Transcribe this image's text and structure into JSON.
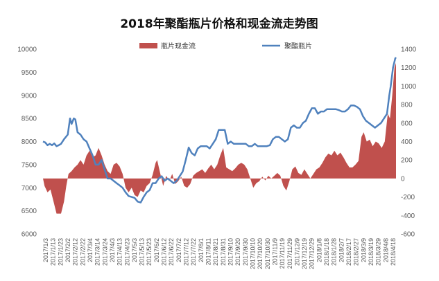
{
  "chart_data": {
    "type": "line+area",
    "title": "2018年聚酯瓶片价格和现金流走势图",
    "legend": [
      {
        "name": "瓶片现金流",
        "color": "#c0504d",
        "kind": "area"
      },
      {
        "name": "聚酯瓶片",
        "color": "#4f81bd",
        "kind": "line"
      }
    ],
    "legend_position": "top",
    "grid": false,
    "y_left": {
      "min": 6000,
      "max": 10000,
      "ticks": [
        "6000",
        "6500",
        "7000",
        "7500",
        "8000",
        "8500",
        "9000",
        "9500",
        "10000"
      ]
    },
    "y_right": {
      "min": -600,
      "max": 1400,
      "ticks": [
        "-600",
        "-400",
        "-200",
        "0",
        "200",
        "400",
        "600",
        "800",
        "1000",
        "1200",
        "1400"
      ]
    },
    "x_range": [
      "2017-01-03",
      "2018-04-18"
    ],
    "x_ticks": [
      "2017/1/3",
      "2017/1/13",
      "2017/1/23",
      "2017/2/2",
      "2017/2/12",
      "2017/2/22",
      "2017/3/4",
      "2017/3/14",
      "2017/3/24",
      "2017/4/3",
      "2017/4/13",
      "2017/4/23",
      "2017/5/3",
      "2017/5/13",
      "2017/5/23",
      "2017/6/2",
      "2017/6/12",
      "2017/6/22",
      "2017/7/2",
      "2017/7/12",
      "2017/7/22",
      "2017/8/1",
      "2017/8/11",
      "2017/8/21",
      "2017/8/31",
      "2017/9/10",
      "2017/9/20",
      "2017/9/30",
      "2017/10/10",
      "2017/10/20",
      "2017/10/30",
      "2017/11/9",
      "2017/11/19",
      "2017/11/29",
      "2017/12/9",
      "2017/12/19",
      "2017/12/29",
      "2018/1/8",
      "2018/1/18",
      "2018/1/28",
      "2018/2/7",
      "2018/2/17",
      "2018/2/27",
      "2018/3/9",
      "2018/3/19",
      "2018/3/29",
      "2018/4/8",
      "2018/4/18"
    ],
    "series": [
      {
        "name": "聚酯瓶片",
        "axis": "left",
        "points": [
          [
            "2017-01-03",
            8000
          ],
          [
            "2017-01-06",
            7980
          ],
          [
            "2017-01-09",
            7920
          ],
          [
            "2017-01-12",
            7950
          ],
          [
            "2017-01-15",
            7920
          ],
          [
            "2017-01-18",
            7960
          ],
          [
            "2017-01-21",
            7900
          ],
          [
            "2017-01-24",
            7920
          ],
          [
            "2017-01-27",
            7950
          ],
          [
            "2017-01-31",
            8050
          ],
          [
            "2017-02-05",
            8150
          ],
          [
            "2017-02-08",
            8500
          ],
          [
            "2017-02-10",
            8380
          ],
          [
            "2017-02-13",
            8500
          ],
          [
            "2017-02-15",
            8480
          ],
          [
            "2017-02-18",
            8200
          ],
          [
            "2017-02-22",
            8150
          ],
          [
            "2017-02-26",
            8050
          ],
          [
            "2017-03-02",
            8000
          ],
          [
            "2017-03-06",
            7850
          ],
          [
            "2017-03-10",
            7700
          ],
          [
            "2017-03-14",
            7500
          ],
          [
            "2017-03-18",
            7500
          ],
          [
            "2017-03-22",
            7600
          ],
          [
            "2017-03-26",
            7400
          ],
          [
            "2017-03-30",
            7200
          ],
          [
            "2017-04-03",
            7200
          ],
          [
            "2017-04-07",
            7150
          ],
          [
            "2017-04-11",
            7100
          ],
          [
            "2017-04-15",
            7050
          ],
          [
            "2017-04-19",
            7000
          ],
          [
            "2017-04-23",
            6900
          ],
          [
            "2017-04-27",
            6820
          ],
          [
            "2017-05-01",
            6800
          ],
          [
            "2017-05-05",
            6780
          ],
          [
            "2017-05-09",
            6700
          ],
          [
            "2017-05-13",
            6680
          ],
          [
            "2017-05-17",
            6800
          ],
          [
            "2017-05-21",
            6900
          ],
          [
            "2017-05-25",
            6950
          ],
          [
            "2017-05-29",
            7100
          ],
          [
            "2017-06-02",
            7100
          ],
          [
            "2017-06-06",
            7200
          ],
          [
            "2017-06-10",
            7250
          ],
          [
            "2017-06-14",
            7150
          ],
          [
            "2017-06-18",
            7200
          ],
          [
            "2017-06-22",
            7150
          ],
          [
            "2017-06-26",
            7100
          ],
          [
            "2017-06-30",
            7150
          ],
          [
            "2017-07-04",
            7250
          ],
          [
            "2017-07-08",
            7350
          ],
          [
            "2017-07-12",
            7600
          ],
          [
            "2017-07-16",
            7870
          ],
          [
            "2017-07-20",
            7750
          ],
          [
            "2017-07-24",
            7700
          ],
          [
            "2017-07-28",
            7850
          ],
          [
            "2017-08-01",
            7900
          ],
          [
            "2017-08-05",
            7900
          ],
          [
            "2017-08-09",
            7900
          ],
          [
            "2017-08-13",
            7850
          ],
          [
            "2017-08-17",
            7950
          ],
          [
            "2017-08-21",
            8050
          ],
          [
            "2017-08-25",
            8250
          ],
          [
            "2017-08-29",
            8250
          ],
          [
            "2017-09-02",
            8250
          ],
          [
            "2017-09-06",
            7950
          ],
          [
            "2017-09-10",
            8000
          ],
          [
            "2017-09-14",
            7950
          ],
          [
            "2017-09-18",
            7950
          ],
          [
            "2017-09-22",
            7950
          ],
          [
            "2017-09-26",
            7950
          ],
          [
            "2017-09-30",
            7950
          ],
          [
            "2017-10-04",
            7900
          ],
          [
            "2017-10-08",
            7900
          ],
          [
            "2017-10-12",
            7950
          ],
          [
            "2017-10-16",
            7900
          ],
          [
            "2017-10-20",
            7900
          ],
          [
            "2017-10-24",
            7900
          ],
          [
            "2017-10-28",
            7900
          ],
          [
            "2017-11-01",
            7920
          ],
          [
            "2017-11-05",
            8050
          ],
          [
            "2017-11-09",
            8100
          ],
          [
            "2017-11-13",
            8100
          ],
          [
            "2017-11-17",
            8050
          ],
          [
            "2017-11-21",
            8000
          ],
          [
            "2017-11-25",
            8050
          ],
          [
            "2017-11-29",
            8300
          ],
          [
            "2017-12-03",
            8350
          ],
          [
            "2017-12-07",
            8300
          ],
          [
            "2017-12-11",
            8300
          ],
          [
            "2017-12-15",
            8400
          ],
          [
            "2017-12-19",
            8450
          ],
          [
            "2017-12-23",
            8600
          ],
          [
            "2017-12-27",
            8720
          ],
          [
            "2017-12-31",
            8720
          ],
          [
            "2018-01-04",
            8600
          ],
          [
            "2018-01-08",
            8650
          ],
          [
            "2018-01-12",
            8650
          ],
          [
            "2018-01-16",
            8700
          ],
          [
            "2018-01-20",
            8700
          ],
          [
            "2018-01-24",
            8700
          ],
          [
            "2018-01-28",
            8700
          ],
          [
            "2018-02-01",
            8680
          ],
          [
            "2018-02-05",
            8650
          ],
          [
            "2018-02-09",
            8650
          ],
          [
            "2018-02-13",
            8700
          ],
          [
            "2018-02-17",
            8780
          ],
          [
            "2018-02-21",
            8780
          ],
          [
            "2018-02-25",
            8750
          ],
          [
            "2018-03-01",
            8700
          ],
          [
            "2018-03-05",
            8550
          ],
          [
            "2018-03-09",
            8450
          ],
          [
            "2018-03-13",
            8400
          ],
          [
            "2018-03-17",
            8350
          ],
          [
            "2018-03-21",
            8300
          ],
          [
            "2018-03-25",
            8350
          ],
          [
            "2018-03-29",
            8400
          ],
          [
            "2018-04-02",
            8500
          ],
          [
            "2018-04-06",
            8600
          ],
          [
            "2018-04-09",
            9000
          ],
          [
            "2018-04-11",
            9200
          ],
          [
            "2018-04-14",
            9600
          ],
          [
            "2018-04-17",
            9800
          ],
          [
            "2018-04-18",
            9820
          ]
        ]
      },
      {
        "name": "瓶片现金流",
        "axis": "right",
        "points": [
          [
            "2017-01-03",
            0
          ],
          [
            "2017-01-05",
            -80
          ],
          [
            "2017-01-09",
            -150
          ],
          [
            "2017-01-13",
            -120
          ],
          [
            "2017-01-17",
            -250
          ],
          [
            "2017-01-21",
            -380
          ],
          [
            "2017-01-27",
            -380
          ],
          [
            "2017-01-31",
            -250
          ],
          [
            "2017-02-03",
            -80
          ],
          [
            "2017-02-06",
            50
          ],
          [
            "2017-02-10",
            80
          ],
          [
            "2017-02-14",
            120
          ],
          [
            "2017-02-18",
            150
          ],
          [
            "2017-02-22",
            200
          ],
          [
            "2017-02-26",
            150
          ],
          [
            "2017-03-02",
            250
          ],
          [
            "2017-03-06",
            300
          ],
          [
            "2017-03-10",
            230
          ],
          [
            "2017-03-14",
            250
          ],
          [
            "2017-03-18",
            330
          ],
          [
            "2017-03-22",
            250
          ],
          [
            "2017-03-26",
            150
          ],
          [
            "2017-03-30",
            80
          ],
          [
            "2017-04-03",
            50
          ],
          [
            "2017-04-07",
            150
          ],
          [
            "2017-04-11",
            170
          ],
          [
            "2017-04-15",
            130
          ],
          [
            "2017-04-19",
            50
          ],
          [
            "2017-04-23",
            -100
          ],
          [
            "2017-04-27",
            -150
          ],
          [
            "2017-05-01",
            -100
          ],
          [
            "2017-05-05",
            -180
          ],
          [
            "2017-05-09",
            -200
          ],
          [
            "2017-05-13",
            -130
          ],
          [
            "2017-05-17",
            -150
          ],
          [
            "2017-05-21",
            -80
          ],
          [
            "2017-05-25",
            -50
          ],
          [
            "2017-05-29",
            40
          ],
          [
            "2017-06-02",
            170
          ],
          [
            "2017-06-04",
            200
          ],
          [
            "2017-06-08",
            60
          ],
          [
            "2017-06-12",
            -80
          ],
          [
            "2017-06-16",
            30
          ],
          [
            "2017-06-20",
            -30
          ],
          [
            "2017-06-24",
            50
          ],
          [
            "2017-06-28",
            -60
          ],
          [
            "2017-07-02",
            -30
          ],
          [
            "2017-07-06",
            20
          ],
          [
            "2017-07-10",
            -80
          ],
          [
            "2017-07-14",
            -100
          ],
          [
            "2017-07-18",
            -60
          ],
          [
            "2017-07-22",
            30
          ],
          [
            "2017-07-26",
            60
          ],
          [
            "2017-07-30",
            80
          ],
          [
            "2017-08-03",
            100
          ],
          [
            "2017-08-07",
            60
          ],
          [
            "2017-08-11",
            110
          ],
          [
            "2017-08-15",
            150
          ],
          [
            "2017-08-19",
            100
          ],
          [
            "2017-08-23",
            150
          ],
          [
            "2017-08-27",
            250
          ],
          [
            "2017-08-31",
            330
          ],
          [
            "2017-09-04",
            120
          ],
          [
            "2017-09-08",
            100
          ],
          [
            "2017-09-12",
            80
          ],
          [
            "2017-09-16",
            110
          ],
          [
            "2017-09-20",
            150
          ],
          [
            "2017-09-24",
            170
          ],
          [
            "2017-09-28",
            150
          ],
          [
            "2017-10-02",
            100
          ],
          [
            "2017-10-06",
            0
          ],
          [
            "2017-10-10",
            -100
          ],
          [
            "2017-10-14",
            -50
          ],
          [
            "2017-10-18",
            -30
          ],
          [
            "2017-10-22",
            20
          ],
          [
            "2017-10-26",
            -20
          ],
          [
            "2017-10-30",
            30
          ],
          [
            "2017-11-03",
            0
          ],
          [
            "2017-11-07",
            30
          ],
          [
            "2017-11-11",
            60
          ],
          [
            "2017-11-15",
            30
          ],
          [
            "2017-11-19",
            -80
          ],
          [
            "2017-11-23",
            -130
          ],
          [
            "2017-11-27",
            -30
          ],
          [
            "2017-12-01",
            100
          ],
          [
            "2017-12-05",
            130
          ],
          [
            "2017-12-09",
            60
          ],
          [
            "2017-12-13",
            40
          ],
          [
            "2017-12-17",
            100
          ],
          [
            "2017-12-21",
            50
          ],
          [
            "2017-12-25",
            0
          ],
          [
            "2017-12-29",
            50
          ],
          [
            "2018-01-02",
            100
          ],
          [
            "2018-01-06",
            120
          ],
          [
            "2018-01-10",
            170
          ],
          [
            "2018-01-14",
            230
          ],
          [
            "2018-01-18",
            270
          ],
          [
            "2018-01-22",
            250
          ],
          [
            "2018-01-26",
            300
          ],
          [
            "2018-01-30",
            250
          ],
          [
            "2018-02-03",
            280
          ],
          [
            "2018-02-07",
            230
          ],
          [
            "2018-02-11",
            170
          ],
          [
            "2018-02-15",
            120
          ],
          [
            "2018-02-19",
            120
          ],
          [
            "2018-02-23",
            150
          ],
          [
            "2018-02-27",
            190
          ],
          [
            "2018-03-03",
            450
          ],
          [
            "2018-03-06",
            500
          ],
          [
            "2018-03-10",
            400
          ],
          [
            "2018-03-14",
            420
          ],
          [
            "2018-03-18",
            350
          ],
          [
            "2018-03-22",
            400
          ],
          [
            "2018-03-26",
            380
          ],
          [
            "2018-03-30",
            330
          ],
          [
            "2018-04-03",
            400
          ],
          [
            "2018-04-07",
            700
          ],
          [
            "2018-04-10",
            650
          ],
          [
            "2018-04-13",
            900
          ],
          [
            "2018-04-16",
            1200
          ],
          [
            "2018-04-18",
            1250
          ]
        ]
      }
    ]
  }
}
